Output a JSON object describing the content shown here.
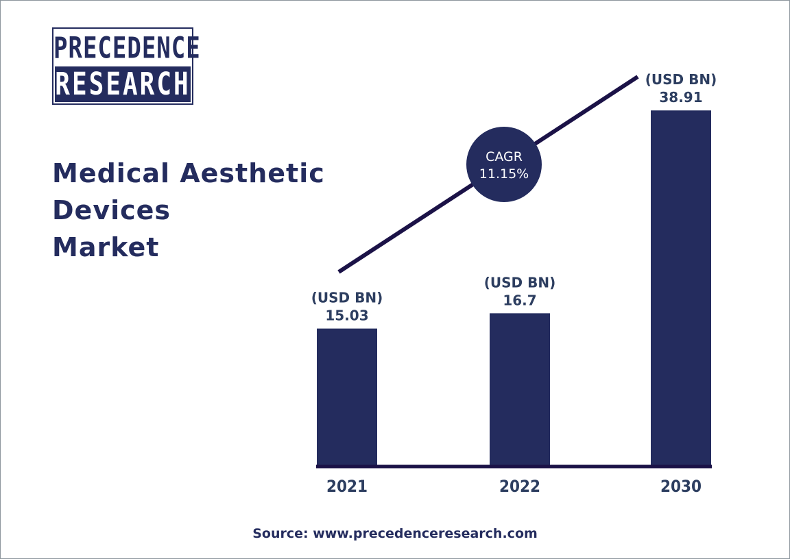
{
  "brand": {
    "logo_line1": "PRECEDENCE",
    "logo_line2": "RESEARCH"
  },
  "title_lines": [
    "Medical Aesthetic",
    "Devices",
    "Market"
  ],
  "source": "Source: www.precedenceresearch.com",
  "colors": {
    "bar": "#242c5e",
    "trend_line": "#1b1247",
    "label_text": "#2d3e60",
    "badge_fill": "#242c5e",
    "badge_text": "#ffffff"
  },
  "chart_data": {
    "type": "bar",
    "categories": [
      "2021",
      "2022",
      "2030"
    ],
    "values": [
      15.03,
      16.7,
      38.91
    ],
    "value_unit": "(USD BN)",
    "value_labels": [
      "15.03",
      "16.7",
      "38.91"
    ],
    "ylim": [
      0,
      45
    ],
    "grid": false,
    "annotation": {
      "label": "CAGR",
      "value": "11.15%"
    },
    "trend_line": true
  }
}
